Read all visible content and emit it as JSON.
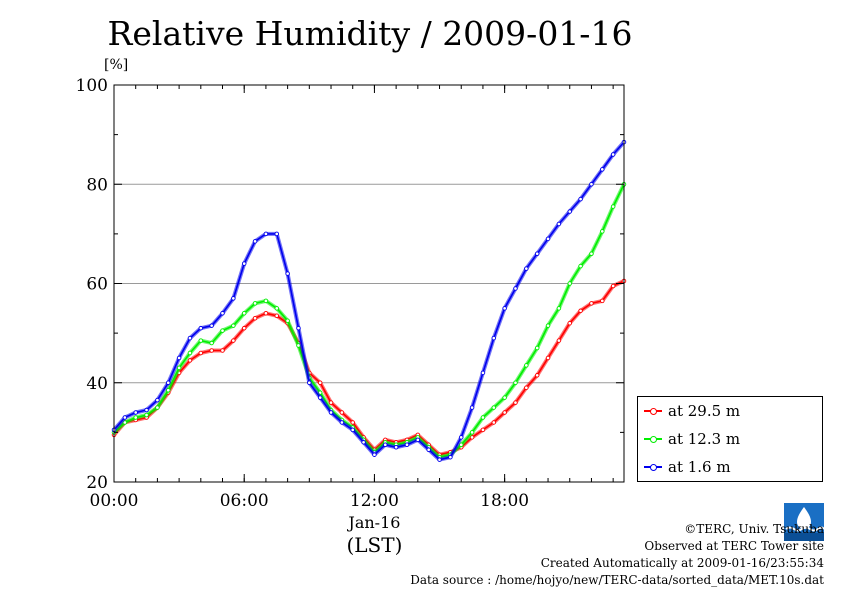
{
  "chart_data": {
    "type": "line",
    "title": "Relative Humidity / 2009-01-16",
    "ylabel": "[%]",
    "xlabel": "(LST)",
    "date_label": "Jan-16",
    "ylim": [
      20,
      100
    ],
    "yticks": [
      20,
      40,
      60,
      80,
      100
    ],
    "xlim": [
      0,
      23.5
    ],
    "xticks": [
      {
        "value": 0,
        "label": "00:00"
      },
      {
        "value": 6,
        "label": "06:00"
      },
      {
        "value": 12,
        "label": "12:00"
      },
      {
        "value": 18,
        "label": "18:00"
      }
    ],
    "grid": true,
    "legend_position": "bottom-right",
    "series": [
      {
        "name": "at 29.5 m",
        "color": "#ff0000",
        "x": [
          0,
          0.5,
          1,
          1.5,
          2,
          2.5,
          3,
          3.5,
          4,
          4.5,
          5,
          5.5,
          6,
          6.5,
          7,
          7.5,
          8,
          8.5,
          9,
          9.5,
          10,
          10.5,
          11,
          11.5,
          12,
          12.5,
          13,
          13.5,
          14,
          14.5,
          15,
          15.5,
          16,
          16.5,
          17,
          17.5,
          18,
          18.5,
          19,
          19.5,
          20,
          20.5,
          21,
          21.5,
          22,
          22.5,
          23,
          23.5
        ],
        "y": [
          29.5,
          32,
          32.5,
          33,
          35,
          38,
          42,
          44.5,
          46,
          46.5,
          46.5,
          48.5,
          51,
          53,
          54,
          53.5,
          52,
          48,
          42,
          40,
          36,
          34,
          32,
          29,
          26.5,
          28.5,
          28,
          28.5,
          29.5,
          27.5,
          25.5,
          26,
          27,
          29,
          30.5,
          32,
          34,
          36,
          39,
          41.5,
          45,
          48.5,
          52,
          54.5,
          56,
          56.5,
          59.5,
          60.5
        ]
      },
      {
        "name": "at 12.3 m",
        "color": "#00ee00",
        "x": [
          0,
          0.5,
          1,
          1.5,
          2,
          2.5,
          3,
          3.5,
          4,
          4.5,
          5,
          5.5,
          6,
          6.5,
          7,
          7.5,
          8,
          8.5,
          9,
          9.5,
          10,
          10.5,
          11,
          11.5,
          12,
          12.5,
          13,
          13.5,
          14,
          14.5,
          15,
          15.5,
          16,
          16.5,
          17,
          17.5,
          18,
          18.5,
          19,
          19.5,
          20,
          20.5,
          21,
          21.5,
          22,
          22.5,
          23,
          23.5
        ],
        "y": [
          30,
          32,
          33,
          33.5,
          35,
          38.5,
          43,
          46,
          48.5,
          48,
          50.5,
          51.5,
          54,
          56,
          56.5,
          55,
          52.5,
          47.5,
          41,
          38,
          34.5,
          32.5,
          31,
          28.5,
          26,
          28,
          27.5,
          28,
          29,
          27,
          25,
          25.5,
          27.5,
          30,
          33,
          35,
          37,
          40,
          43.5,
          47,
          51.5,
          55,
          60,
          63.5,
          66,
          70.5,
          75.5,
          80
        ]
      },
      {
        "name": "at 1.6 m",
        "color": "#0000ee",
        "x": [
          0,
          0.5,
          1,
          1.5,
          2,
          2.5,
          3,
          3.5,
          4,
          4.5,
          5,
          5.5,
          6,
          6.5,
          7,
          7.5,
          8,
          8.5,
          9,
          9.5,
          10,
          10.5,
          11,
          11.5,
          12,
          12.5,
          13,
          13.5,
          14,
          14.5,
          15,
          15.5,
          16,
          16.5,
          17,
          17.5,
          18,
          18.5,
          19,
          19.5,
          20,
          20.5,
          21,
          21.5,
          22,
          22.5,
          23,
          23.5
        ],
        "y": [
          30.5,
          33,
          34,
          34.5,
          36.5,
          40,
          45,
          49,
          51,
          51.5,
          54,
          57,
          64,
          68.5,
          70,
          70,
          62,
          51,
          40,
          37,
          34,
          32,
          30.5,
          28,
          25.5,
          27.5,
          27,
          27.5,
          28.5,
          26.5,
          24.5,
          25,
          29,
          35,
          42,
          49,
          55,
          59,
          63,
          66,
          69,
          72,
          74.5,
          77,
          80,
          83,
          86,
          88.5
        ]
      }
    ]
  },
  "credits": {
    "copyright": "©TERC, Univ. Tsukuba",
    "observed": "Observed at TERC Tower site",
    "created": "Created Automatically at 2009-01-16/23:55:34",
    "source": "Data source : /home/hojyo/new/TERC-data/sorted_data/MET.10s.dat"
  }
}
